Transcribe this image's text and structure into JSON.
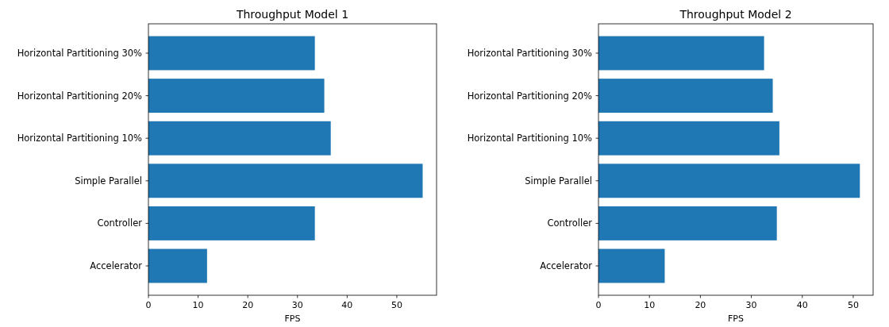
{
  "chart_data": [
    {
      "type": "bar",
      "orientation": "horizontal",
      "title": "Throughput Model 1",
      "xlabel": "FPS",
      "categories": [
        "Horizontal Partitioning 30%",
        "Horizontal Partitioning 20%",
        "Horizontal Partitioning 10%",
        "Simple Parallel",
        "Controller",
        "Accelerator"
      ],
      "values": [
        33.5,
        35.4,
        36.7,
        55.2,
        33.5,
        11.8
      ],
      "color": "#1f77b4",
      "xlim": [
        0,
        58.0
      ],
      "xticks": [
        0,
        10,
        20,
        30,
        40,
        50
      ],
      "grid": false
    },
    {
      "type": "bar",
      "orientation": "horizontal",
      "title": "Throughput Model 2",
      "xlabel": "FPS",
      "categories": [
        "Horizontal Partitioning 30%",
        "Horizontal Partitioning 20%",
        "Horizontal Partitioning 10%",
        "Simple Parallel",
        "Controller",
        "Accelerator"
      ],
      "values": [
        32.5,
        34.2,
        35.5,
        51.3,
        35.0,
        13.0
      ],
      "color": "#1f77b4",
      "xlim": [
        0,
        53.9
      ],
      "xticks": [
        0,
        10,
        20,
        30,
        40,
        50
      ],
      "grid": false
    }
  ]
}
